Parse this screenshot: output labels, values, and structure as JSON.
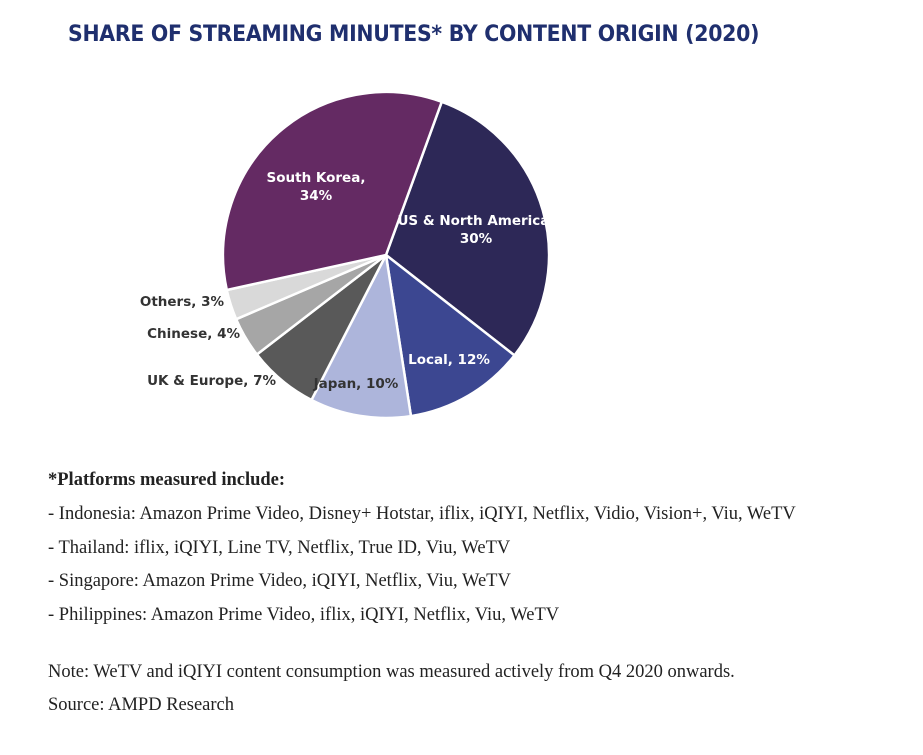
{
  "chart_data": {
    "type": "pie",
    "title": "SHARE OF STREAMING MINUTES* BY CONTENT ORIGIN (2020)",
    "slices": [
      {
        "label": "US & North America, 30%",
        "value": 30,
        "color": "#2d2857",
        "label_color": "#ffffff"
      },
      {
        "label": "Local, 12%",
        "value": 12,
        "color": "#3c4791",
        "label_color": "#ffffff"
      },
      {
        "label": "Japan, 10%",
        "value": 10,
        "color": "#adb5db",
        "label_color": "#333333"
      },
      {
        "label": "UK & Europe, 7%",
        "value": 7,
        "color": "#595959",
        "label_color": "#333333"
      },
      {
        "label": "Chinese, 4%",
        "value": 4,
        "color": "#a6a6a6",
        "label_color": "#333333"
      },
      {
        "label": "Others, 3%",
        "value": 3,
        "color": "#d9d9d9",
        "label_color": "#333333"
      },
      {
        "label": "South Korea, 34%",
        "value": 34,
        "color": "#642a63",
        "label_color": "#ffffff"
      }
    ]
  },
  "notes": {
    "heading": "*Platforms measured include:",
    "items": [
      "-  Indonesia: Amazon Prime Video, Disney+ Hotstar, iflix, iQIYI, Netflix, Vidio, Vision+, Viu, WeTV",
      "-  Thailand: iflix, iQIYI, Line TV, Netflix, True ID, Viu, WeTV",
      "-  Singapore: Amazon Prime Video, iQIYI, Netflix, Viu, WeTV",
      "-  Philippines: Amazon Prime Video, iflix, iQIYI, Netflix, Viu, WeTV"
    ],
    "note": "Note: WeTV and iQIYI content consumption was measured actively from Q4 2020 onwards.",
    "source": "Source: AMPD Research"
  }
}
